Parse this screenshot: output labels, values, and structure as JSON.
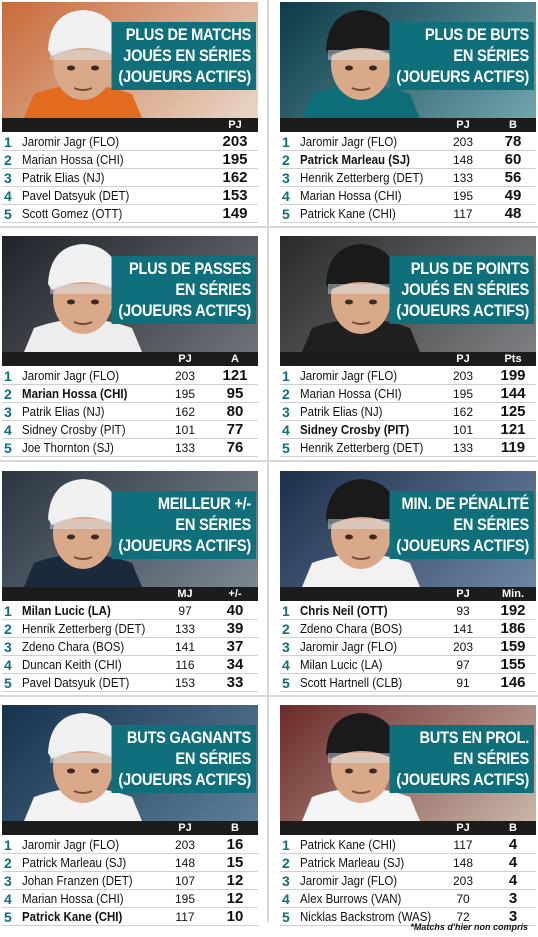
{
  "colors": {
    "accent": "#0f6f7a",
    "header_bg": "#1c1c1c",
    "separator": "#d7d7d7"
  },
  "panels": [
    {
      "title": "PLUS DE MATCHS\nJOUÉS EN SÉRIES\n(JOUEURS ACTIFS)",
      "headers": [
        "",
        "PJ"
      ],
      "photo_bg": [
        "#c96a3a",
        "#e8d7c8"
      ],
      "jersey": "#e36b1e",
      "rows": [
        {
          "rank": "1",
          "name": "Jaromir Jagr (FLO)",
          "gp": "",
          "value": "203",
          "bold": false
        },
        {
          "rank": "2",
          "name": "Marian Hossa (CHI)",
          "gp": "",
          "value": "195",
          "bold": false
        },
        {
          "rank": "3",
          "name": "Patrik Elias (NJ)",
          "gp": "",
          "value": "162",
          "bold": false
        },
        {
          "rank": "4",
          "name": "Pavel Datsyuk (DET)",
          "gp": "",
          "value": "153",
          "bold": false
        },
        {
          "rank": "5",
          "name": "Scott Gomez (OTT)",
          "gp": "",
          "value": "149",
          "bold": false
        }
      ]
    },
    {
      "title": "PLUS DE BUTS\nEN SÉRIES\n(JOUEURS ACTIFS)",
      "headers": [
        "PJ",
        "B"
      ],
      "photo_bg": [
        "#0d3b47",
        "#6fa4ad"
      ],
      "jersey": "#0e6e77",
      "rows": [
        {
          "rank": "1",
          "name": "Jaromir Jagr (FLO)",
          "gp": "203",
          "value": "78",
          "bold": false
        },
        {
          "rank": "2",
          "name": "Patrick Marleau (SJ)",
          "gp": "148",
          "value": "60",
          "bold": true
        },
        {
          "rank": "3",
          "name": "Henrik Zetterberg (DET)",
          "gp": "133",
          "value": "56",
          "bold": false
        },
        {
          "rank": "4",
          "name": "Marian Hossa (CHI)",
          "gp": "195",
          "value": "49",
          "bold": false
        },
        {
          "rank": "5",
          "name": "Patrick Kane (CHI)",
          "gp": "117",
          "value": "48",
          "bold": false
        }
      ]
    },
    {
      "title": "PLUS DE PASSES\nEN SÉRIES\n(JOUEURS ACTIFS)",
      "headers": [
        "PJ",
        "A"
      ],
      "photo_bg": [
        "#20242a",
        "#6f7278"
      ],
      "jersey": "#ededed",
      "rows": [
        {
          "rank": "1",
          "name": "Jaromir Jagr (FLO)",
          "gp": "203",
          "value": "121",
          "bold": false
        },
        {
          "rank": "2",
          "name": "Marian Hossa (CHI)",
          "gp": "195",
          "value": "95",
          "bold": true
        },
        {
          "rank": "3",
          "name": "Patrik Elias (NJ)",
          "gp": "162",
          "value": "80",
          "bold": false
        },
        {
          "rank": "4",
          "name": "Sidney Crosby (PIT)",
          "gp": "101",
          "value": "77",
          "bold": false
        },
        {
          "rank": "5",
          "name": "Joe Thornton (SJ)",
          "gp": "133",
          "value": "76",
          "bold": false
        }
      ]
    },
    {
      "title": "PLUS DE POINTS\nJOUÉS EN SÉRIES\n(JOUEURS ACTIFS)",
      "headers": [
        "PJ",
        "Pts"
      ],
      "photo_bg": [
        "#2a2a2a",
        "#7d7f82"
      ],
      "jersey": "#1f1f1f",
      "rows": [
        {
          "rank": "1",
          "name": "Jaromir Jagr (FLO)",
          "gp": "203",
          "value": "199",
          "bold": false
        },
        {
          "rank": "2",
          "name": "Marian Hossa (CHI)",
          "gp": "195",
          "value": "144",
          "bold": false
        },
        {
          "rank": "3",
          "name": "Patrik Elias (NJ)",
          "gp": "162",
          "value": "125",
          "bold": false
        },
        {
          "rank": "4",
          "name": "Sidney Crosby (PIT)",
          "gp": "101",
          "value": "121",
          "bold": true
        },
        {
          "rank": "5",
          "name": "Henrik Zetterberg (DET)",
          "gp": "133",
          "value": "119",
          "bold": false
        }
      ]
    },
    {
      "title": "MEILLEUR +/-\nEN SÉRIES\n(JOUEURS ACTIFS)",
      "headers": [
        "MJ",
        "+/-"
      ],
      "photo_bg": [
        "#2b3540",
        "#7c8894"
      ],
      "jersey": "#1b2a3a",
      "rows": [
        {
          "rank": "1",
          "name": "Milan Lucic (LA)",
          "gp": "97",
          "value": "40",
          "bold": true
        },
        {
          "rank": "2",
          "name": "Henrik Zetterberg (DET)",
          "gp": "133",
          "value": "39",
          "bold": false
        },
        {
          "rank": "3",
          "name": "Zdeno Chara (BOS)",
          "gp": "141",
          "value": "37",
          "bold": false
        },
        {
          "rank": "4",
          "name": "Duncan Keith (CHI)",
          "gp": "116",
          "value": "34",
          "bold": false
        },
        {
          "rank": "5",
          "name": "Pavel Datsyuk (DET)",
          "gp": "153",
          "value": "33",
          "bold": false
        }
      ]
    },
    {
      "title": "MIN. DE PÉNALITÉ\nEN SÉRIES\n(JOUEURS ACTIFS)",
      "headers": [
        "PJ",
        "Min."
      ],
      "photo_bg": [
        "#1d2f4a",
        "#6e86a6"
      ],
      "jersey": "#f2f2f2",
      "rows": [
        {
          "rank": "1",
          "name": "Chris Neil (OTT)",
          "gp": "93",
          "value": "192",
          "bold": true
        },
        {
          "rank": "2",
          "name": "Zdeno Chara (BOS)",
          "gp": "141",
          "value": "186",
          "bold": false
        },
        {
          "rank": "3",
          "name": "Jaromir Jagr (FLO)",
          "gp": "203",
          "value": "159",
          "bold": false
        },
        {
          "rank": "4",
          "name": "Milan Lucic (LA)",
          "gp": "97",
          "value": "155",
          "bold": false
        },
        {
          "rank": "5",
          "name": "Scott Hartnell (CLB)",
          "gp": "91",
          "value": "146",
          "bold": false
        }
      ]
    },
    {
      "title": "BUTS GAGNANTS\nEN SÉRIES\n(JOUEURS ACTIFS)",
      "headers": [
        "PJ",
        "B"
      ],
      "photo_bg": [
        "#16324d",
        "#5e7e98"
      ],
      "jersey": "#f3f3f3",
      "rows": [
        {
          "rank": "1",
          "name": "Jaromir Jagr (FLO)",
          "gp": "203",
          "value": "16",
          "bold": false
        },
        {
          "rank": "2",
          "name": "Patrick Marleau (SJ)",
          "gp": "148",
          "value": "15",
          "bold": false
        },
        {
          "rank": "3",
          "name": "Johan Franzen (DET)",
          "gp": "107",
          "value": "12",
          "bold": false
        },
        {
          "rank": "4",
          "name": "Marian Hossa (CHI)",
          "gp": "195",
          "value": "12",
          "bold": false
        },
        {
          "rank": "5",
          "name": "Patrick Kane (CHI)",
          "gp": "117",
          "value": "10",
          "bold": true
        }
      ]
    },
    {
      "title": "BUTS EN PROL.\nEN SÉRIES\n(JOUEURS ACTIFS)",
      "headers": [
        "PJ",
        "B"
      ],
      "photo_bg": [
        "#6b2a2a",
        "#c9b6a8"
      ],
      "jersey": "#f5f5f5",
      "rows": [
        {
          "rank": "1",
          "name": "Patrick Kane (CHI)",
          "gp": "117",
          "value": "4",
          "bold": false
        },
        {
          "rank": "2",
          "name": "Patrick Marleau (SJ)",
          "gp": "148",
          "value": "4",
          "bold": false
        },
        {
          "rank": "3",
          "name": "Jaromir Jagr (FLO)",
          "gp": "203",
          "value": "4",
          "bold": false
        },
        {
          "rank": "4",
          "name": "Alex Burrows (VAN)",
          "gp": "70",
          "value": "3",
          "bold": false
        },
        {
          "rank": "5",
          "name": "Nicklas Backstrom (WAS)",
          "gp": "72",
          "value": "3",
          "bold": false
        }
      ]
    }
  ],
  "footnote": "*Matchs d'hier non compris"
}
